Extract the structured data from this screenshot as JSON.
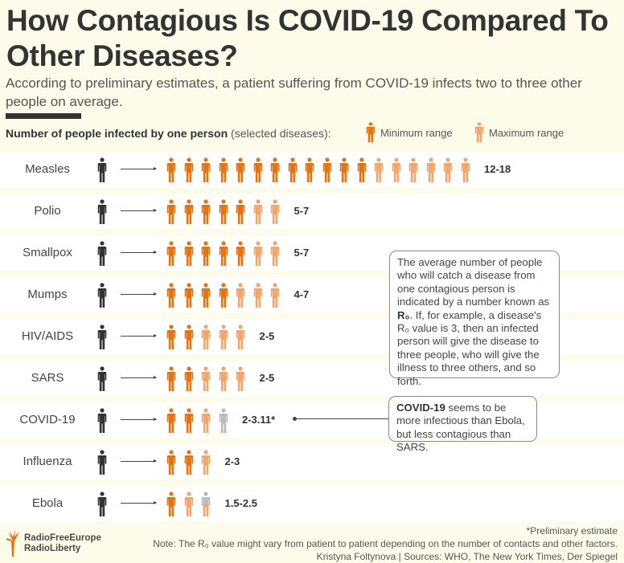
{
  "header": {
    "title": "How Contagious Is COVID-19 Compared To Other Diseases?",
    "subtitle": "According to preliminary estimates, a patient suffering from COVID-19 infects two to three other people on average."
  },
  "chart_heading": {
    "bold": "Number of people infected by one person",
    "light": "(selected diseases):"
  },
  "legend": {
    "min_label": "Minimum range",
    "max_label": "Maximum range"
  },
  "colors": {
    "min": "#e5730f",
    "max": "#f2a66c",
    "uncertain": "#b9bcc0",
    "source": "#333333",
    "row_bg": "#ffffff",
    "page_bg": "#fdfcea"
  },
  "chart_data": {
    "type": "pictogram",
    "title": "Number of people infected by one person (selected diseases)",
    "unit": "people (R0)",
    "series": [
      {
        "name": "Minimum range"
      },
      {
        "name": "Maximum range"
      }
    ],
    "rows": [
      {
        "disease": "Measles",
        "min": 12,
        "max": 18,
        "label": "12-18"
      },
      {
        "disease": "Polio",
        "min": 5,
        "max": 7,
        "label": "5-7"
      },
      {
        "disease": "Smallpox",
        "min": 5,
        "max": 7,
        "label": "5-7"
      },
      {
        "disease": "Mumps",
        "min": 4,
        "max": 7,
        "label": "4-7"
      },
      {
        "disease": "HIV/AIDS",
        "min": 2,
        "max": 5,
        "label": "2-5"
      },
      {
        "disease": "SARS",
        "min": 2,
        "max": 5,
        "label": "2-5"
      },
      {
        "disease": "COVID-19",
        "min": 2,
        "max": 3.11,
        "label": "2-3.11*"
      },
      {
        "disease": "Influenza",
        "min": 2,
        "max": 3,
        "label": "2-3"
      },
      {
        "disease": "Ebola",
        "min": 1.5,
        "max": 2.5,
        "label": "1.5-2.5"
      }
    ]
  },
  "callouts": {
    "r0_text_1": "The average number of people who will catch a disease from one contagious person is indicated by a number known as ",
    "r0_bold": "R₀",
    "r0_text_2": ". If, for example, a disease's R₀ value is 3, then an infected person will give the disease to three people, who will give the illness to three others, and so forth.",
    "covid_bold": "COVID-19",
    "covid_text": " seems to be more infectious than Ebola, but less contagious than SARS."
  },
  "footer": {
    "preliminary": "*Preliminary estimate",
    "note": "Note: The R₀ value might vary from patient to patient depending on the number of contacts and other factors.",
    "credits": "Kristyna Foltynova | Sources: WHO, The New York Times, Der Spiegel",
    "logo_line1": "RadioFreeEurope",
    "logo_line2": "RadioLiberty"
  }
}
